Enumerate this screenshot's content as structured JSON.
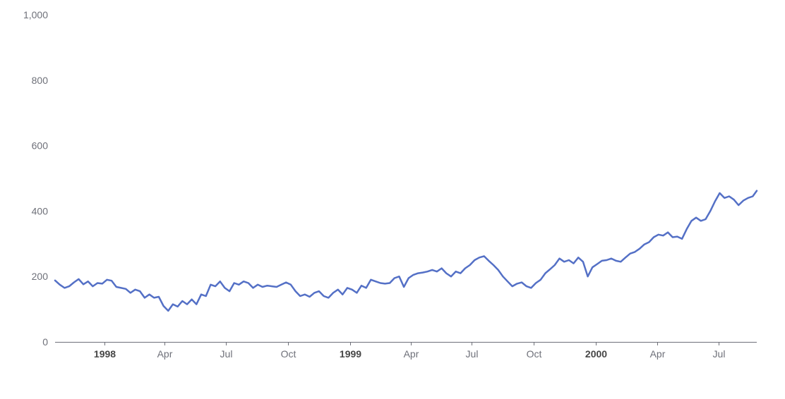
{
  "chart_data": {
    "type": "line",
    "title": "",
    "xlabel": "",
    "ylabel": "",
    "x_range": [
      "1997-10-20",
      "2000-08-27"
    ],
    "ylim": [
      0,
      1000
    ],
    "y_ticks": [
      {
        "value": 0,
        "label": "0"
      },
      {
        "value": 200,
        "label": "200"
      },
      {
        "value": 400,
        "label": "400"
      },
      {
        "value": 600,
        "label": "600"
      },
      {
        "value": 800,
        "label": "800"
      },
      {
        "value": 1000,
        "label": "1,000"
      }
    ],
    "x_ticks": [
      {
        "date": "1998-01-01",
        "label": "1998",
        "major": true
      },
      {
        "date": "1998-04-01",
        "label": "Apr",
        "major": false
      },
      {
        "date": "1998-07-01",
        "label": "Jul",
        "major": false
      },
      {
        "date": "1998-10-01",
        "label": "Oct",
        "major": false
      },
      {
        "date": "1999-01-01",
        "label": "1999",
        "major": true
      },
      {
        "date": "1999-04-01",
        "label": "Apr",
        "major": false
      },
      {
        "date": "1999-07-01",
        "label": "Jul",
        "major": false
      },
      {
        "date": "1999-10-01",
        "label": "Oct",
        "major": false
      },
      {
        "date": "2000-01-01",
        "label": "2000",
        "major": true
      },
      {
        "date": "2000-04-01",
        "label": "Apr",
        "major": false
      },
      {
        "date": "2000-07-01",
        "label": "Jul",
        "major": false
      }
    ],
    "grid": false,
    "colors": {
      "series": "#5470c6",
      "axis": "#6e7079",
      "label": "#6e7079",
      "major_label": "#464646"
    },
    "series": [
      {
        "name": "",
        "points": [
          [
            "1997-10-20",
            188
          ],
          [
            "1997-10-27",
            175
          ],
          [
            "1997-11-03",
            165
          ],
          [
            "1997-11-10",
            170
          ],
          [
            "1997-11-17",
            182
          ],
          [
            "1997-11-24",
            192
          ],
          [
            "1997-12-01",
            176
          ],
          [
            "1997-12-08",
            185
          ],
          [
            "1997-12-15",
            170
          ],
          [
            "1997-12-22",
            180
          ],
          [
            "1997-12-29",
            178
          ],
          [
            "1998-01-05",
            190
          ],
          [
            "1998-01-12",
            187
          ],
          [
            "1998-01-19",
            168
          ],
          [
            "1998-01-26",
            165
          ],
          [
            "1998-02-02",
            162
          ],
          [
            "1998-02-09",
            150
          ],
          [
            "1998-02-16",
            160
          ],
          [
            "1998-02-23",
            155
          ],
          [
            "1998-03-02",
            135
          ],
          [
            "1998-03-09",
            145
          ],
          [
            "1998-03-16",
            135
          ],
          [
            "1998-03-23",
            138
          ],
          [
            "1998-03-30",
            110
          ],
          [
            "1998-04-06",
            95
          ],
          [
            "1998-04-13",
            115
          ],
          [
            "1998-04-20",
            108
          ],
          [
            "1998-04-27",
            125
          ],
          [
            "1998-05-04",
            115
          ],
          [
            "1998-05-11",
            130
          ],
          [
            "1998-05-18",
            115
          ],
          [
            "1998-05-25",
            145
          ],
          [
            "1998-06-01",
            140
          ],
          [
            "1998-06-08",
            175
          ],
          [
            "1998-06-15",
            170
          ],
          [
            "1998-06-22",
            185
          ],
          [
            "1998-06-29",
            165
          ],
          [
            "1998-07-06",
            155
          ],
          [
            "1998-07-13",
            180
          ],
          [
            "1998-07-20",
            175
          ],
          [
            "1998-07-27",
            185
          ],
          [
            "1998-08-03",
            180
          ],
          [
            "1998-08-10",
            165
          ],
          [
            "1998-08-17",
            175
          ],
          [
            "1998-08-24",
            168
          ],
          [
            "1998-08-31",
            172
          ],
          [
            "1998-09-07",
            170
          ],
          [
            "1998-09-14",
            168
          ],
          [
            "1998-09-21",
            175
          ],
          [
            "1998-09-28",
            182
          ],
          [
            "1998-10-05",
            175
          ],
          [
            "1998-10-12",
            155
          ],
          [
            "1998-10-19",
            140
          ],
          [
            "1998-10-26",
            145
          ],
          [
            "1998-11-02",
            138
          ],
          [
            "1998-11-09",
            150
          ],
          [
            "1998-11-16",
            155
          ],
          [
            "1998-11-23",
            140
          ],
          [
            "1998-11-30",
            135
          ],
          [
            "1998-12-07",
            150
          ],
          [
            "1998-12-14",
            160
          ],
          [
            "1998-12-21",
            145
          ],
          [
            "1998-12-28",
            165
          ],
          [
            "1999-01-04",
            160
          ],
          [
            "1999-01-11",
            150
          ],
          [
            "1999-01-18",
            172
          ],
          [
            "1999-01-25",
            165
          ],
          [
            "1999-02-01",
            190
          ],
          [
            "1999-02-08",
            185
          ],
          [
            "1999-02-15",
            180
          ],
          [
            "1999-02-22",
            178
          ],
          [
            "1999-03-01",
            180
          ],
          [
            "1999-03-08",
            195
          ],
          [
            "1999-03-15",
            200
          ],
          [
            "1999-03-22",
            168
          ],
          [
            "1999-03-29",
            195
          ],
          [
            "1999-04-05",
            205
          ],
          [
            "1999-04-12",
            210
          ],
          [
            "1999-04-19",
            212
          ],
          [
            "1999-04-26",
            215
          ],
          [
            "1999-05-03",
            220
          ],
          [
            "1999-05-10",
            215
          ],
          [
            "1999-05-17",
            225
          ],
          [
            "1999-05-24",
            210
          ],
          [
            "1999-05-31",
            200
          ],
          [
            "1999-06-07",
            215
          ],
          [
            "1999-06-14",
            210
          ],
          [
            "1999-06-21",
            225
          ],
          [
            "1999-06-28",
            235
          ],
          [
            "1999-07-05",
            250
          ],
          [
            "1999-07-12",
            258
          ],
          [
            "1999-07-19",
            262
          ],
          [
            "1999-07-26",
            248
          ],
          [
            "1999-08-02",
            235
          ],
          [
            "1999-08-09",
            220
          ],
          [
            "1999-08-16",
            200
          ],
          [
            "1999-08-23",
            185
          ],
          [
            "1999-08-30",
            170
          ],
          [
            "1999-09-06",
            178
          ],
          [
            "1999-09-13",
            182
          ],
          [
            "1999-09-20",
            170
          ],
          [
            "1999-09-27",
            165
          ],
          [
            "1999-10-04",
            180
          ],
          [
            "1999-10-11",
            190
          ],
          [
            "1999-10-18",
            210
          ],
          [
            "1999-10-25",
            222
          ],
          [
            "1999-11-01",
            235
          ],
          [
            "1999-11-08",
            255
          ],
          [
            "1999-11-15",
            245
          ],
          [
            "1999-11-22",
            250
          ],
          [
            "1999-11-29",
            240
          ],
          [
            "1999-12-06",
            258
          ],
          [
            "1999-12-13",
            245
          ],
          [
            "1999-12-20",
            200
          ],
          [
            "1999-12-27",
            228
          ],
          [
            "2000-01-03",
            238
          ],
          [
            "2000-01-10",
            248
          ],
          [
            "2000-01-17",
            250
          ],
          [
            "2000-01-24",
            255
          ],
          [
            "2000-01-31",
            248
          ],
          [
            "2000-02-07",
            245
          ],
          [
            "2000-02-14",
            258
          ],
          [
            "2000-02-21",
            270
          ],
          [
            "2000-02-28",
            275
          ],
          [
            "2000-03-06",
            285
          ],
          [
            "2000-03-13",
            298
          ],
          [
            "2000-03-20",
            305
          ],
          [
            "2000-03-27",
            320
          ],
          [
            "2000-04-03",
            328
          ],
          [
            "2000-04-10",
            325
          ],
          [
            "2000-04-17",
            335
          ],
          [
            "2000-04-24",
            320
          ],
          [
            "2000-05-01",
            322
          ],
          [
            "2000-05-08",
            315
          ],
          [
            "2000-05-15",
            345
          ],
          [
            "2000-05-22",
            370
          ],
          [
            "2000-05-29",
            380
          ],
          [
            "2000-06-05",
            370
          ],
          [
            "2000-06-12",
            375
          ],
          [
            "2000-06-19",
            400
          ],
          [
            "2000-06-26",
            430
          ],
          [
            "2000-07-03",
            455
          ],
          [
            "2000-07-10",
            440
          ],
          [
            "2000-07-17",
            445
          ],
          [
            "2000-07-24",
            435
          ],
          [
            "2000-07-31",
            418
          ],
          [
            "2000-08-07",
            432
          ],
          [
            "2000-08-14",
            440
          ],
          [
            "2000-08-21",
            445
          ],
          [
            "2000-08-27",
            462
          ]
        ]
      }
    ]
  }
}
